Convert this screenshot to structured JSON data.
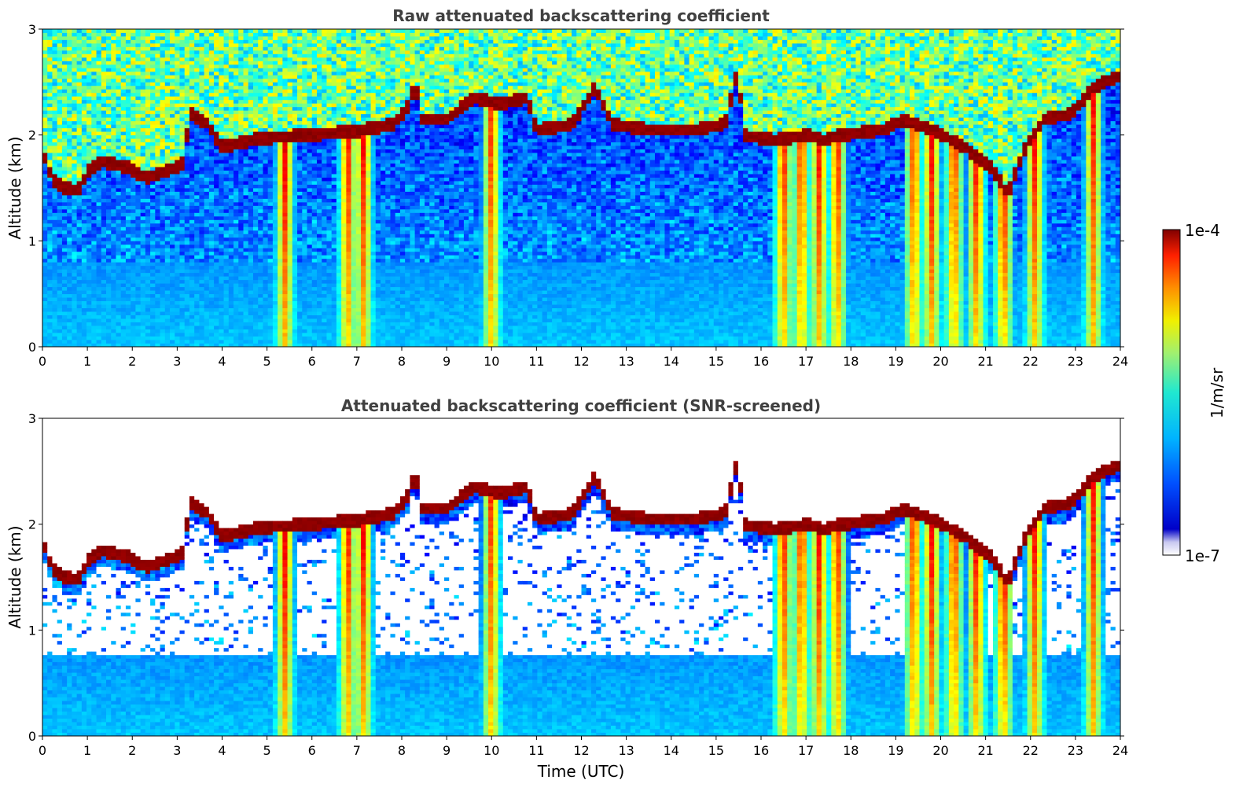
{
  "chart_data": [
    {
      "type": "heatmap",
      "title": "Raw attenuated backscattering coefficient",
      "ylabel": "Altitude (km)",
      "xlabel": "",
      "xlim": [
        0,
        24
      ],
      "ylim": [
        0,
        3
      ],
      "x_ticks": [
        "0",
        "1",
        "2",
        "3",
        "4",
        "5",
        "6",
        "7",
        "8",
        "9",
        "10",
        "11",
        "12",
        "13",
        "14",
        "15",
        "16",
        "17",
        "18",
        "19",
        "20",
        "21",
        "22",
        "23",
        "24"
      ],
      "y_ticks": [
        "0",
        "1",
        "2",
        "3"
      ],
      "screened": false
    },
    {
      "type": "heatmap",
      "title": "Attenuated backscattering coefficient (SNR-screened)",
      "ylabel": "Altitude (km)",
      "xlabel": "Time (UTC)",
      "xlim": [
        0,
        24
      ],
      "ylim": [
        0,
        3
      ],
      "x_ticks": [
        "0",
        "1",
        "2",
        "3",
        "4",
        "5",
        "6",
        "7",
        "8",
        "9",
        "10",
        "11",
        "12",
        "13",
        "14",
        "15",
        "16",
        "17",
        "18",
        "19",
        "20",
        "21",
        "22",
        "23",
        "24"
      ],
      "y_ticks": [
        "0",
        "1",
        "2",
        "3"
      ],
      "screened": true
    }
  ],
  "colorbar": {
    "label": "1/m/sr",
    "max_label": "1e-4",
    "min_label": "1e-7",
    "scale": "log",
    "colormap": "jet"
  },
  "cloud_layer_km": [
    [
      0.0,
      1.85
    ],
    [
      0.2,
      1.6
    ],
    [
      0.5,
      1.5
    ],
    [
      0.8,
      1.48
    ],
    [
      1.0,
      1.65
    ],
    [
      1.3,
      1.75
    ],
    [
      1.9,
      1.7
    ],
    [
      2.3,
      1.6
    ],
    [
      2.7,
      1.65
    ],
    [
      3.1,
      1.72
    ],
    [
      3.3,
      2.2
    ],
    [
      3.7,
      2.1
    ],
    [
      4.0,
      1.88
    ],
    [
      4.6,
      1.95
    ],
    [
      5.2,
      1.98
    ],
    [
      6.0,
      2.0
    ],
    [
      7.0,
      2.04
    ],
    [
      7.8,
      2.1
    ],
    [
      8.2,
      2.3
    ],
    [
      8.3,
      2.6
    ],
    [
      8.4,
      2.15
    ],
    [
      9.0,
      2.15
    ],
    [
      9.6,
      2.35
    ],
    [
      10.2,
      2.3
    ],
    [
      10.8,
      2.35
    ],
    [
      11.0,
      2.05
    ],
    [
      11.8,
      2.1
    ],
    [
      12.3,
      2.45
    ],
    [
      12.7,
      2.1
    ],
    [
      13.5,
      2.05
    ],
    [
      14.5,
      2.05
    ],
    [
      15.2,
      2.1
    ],
    [
      15.5,
      2.65
    ],
    [
      15.6,
      2.0
    ],
    [
      16.3,
      1.95
    ],
    [
      17.0,
      2.0
    ],
    [
      17.4,
      1.95
    ],
    [
      17.8,
      2.0
    ],
    [
      18.7,
      2.05
    ],
    [
      19.2,
      2.15
    ],
    [
      19.8,
      2.05
    ],
    [
      20.5,
      1.9
    ],
    [
      21.1,
      1.7
    ],
    [
      21.5,
      1.45
    ],
    [
      21.9,
      1.9
    ],
    [
      22.3,
      2.15
    ],
    [
      22.9,
      2.2
    ],
    [
      23.4,
      2.45
    ],
    [
      23.9,
      2.55
    ]
  ],
  "plumes_hours": [
    5.4,
    6.8,
    7.15,
    10.0,
    16.5,
    16.9,
    17.3,
    17.7,
    19.4,
    19.8,
    20.3,
    20.8,
    21.4,
    22.1,
    23.4
  ]
}
